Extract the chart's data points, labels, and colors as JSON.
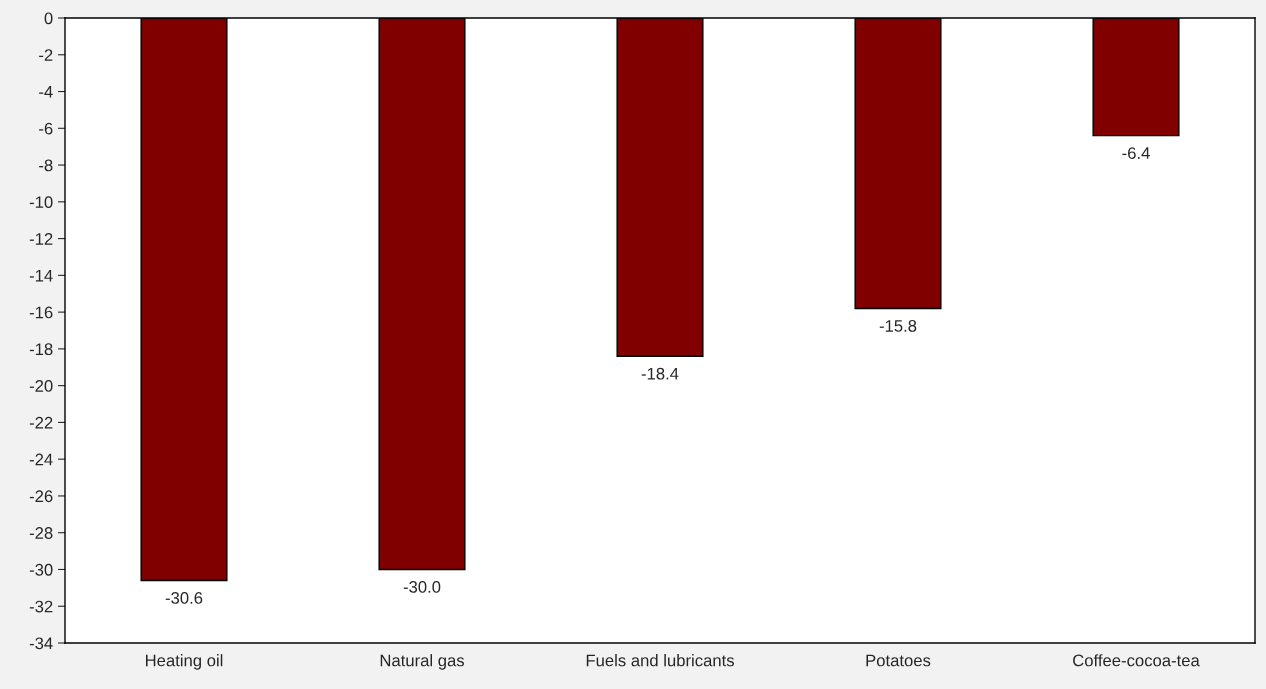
{
  "chart_data": {
    "type": "bar",
    "categories": [
      "Heating oil",
      "Natural gas",
      "Fuels and lubricants",
      "Potatoes",
      "Coffee-cocoa-tea"
    ],
    "values": [
      -30.6,
      -30.0,
      -18.4,
      -15.8,
      -6.4
    ],
    "value_labels": [
      "-30.6",
      "-30.0",
      "-18.4",
      "-15.8",
      "-6.4"
    ],
    "color": "#800000",
    "ylim": [
      -34,
      0
    ],
    "yticks": [
      0,
      -2,
      -4,
      -6,
      -8,
      -10,
      -12,
      -14,
      -16,
      -18,
      -20,
      -22,
      -24,
      -26,
      -28,
      -30,
      -32,
      -34
    ],
    "grid": false,
    "legend": false
  }
}
